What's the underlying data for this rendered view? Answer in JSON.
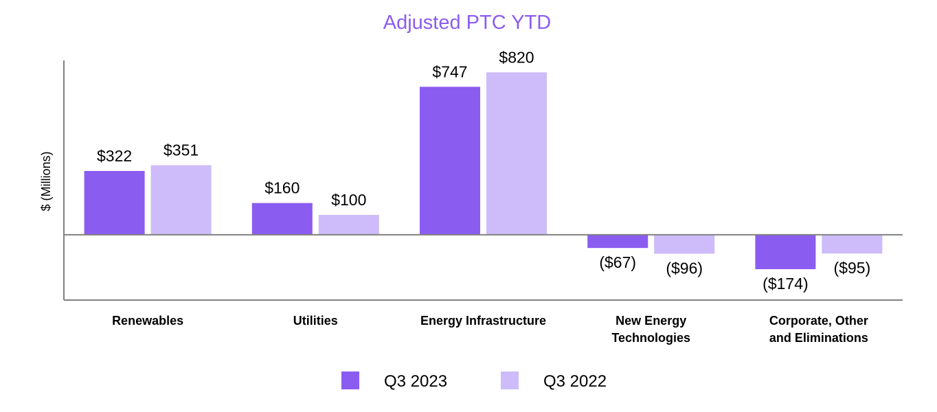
{
  "chart_data": {
    "type": "bar",
    "title": "Adjusted PTC YTD",
    "ylabel": "$ (Millions)",
    "xlabel": "",
    "categories": [
      [
        "Renewables"
      ],
      [
        "Utilities"
      ],
      [
        "Energy Infrastructure"
      ],
      [
        "New Energy",
        "Technologies"
      ],
      [
        "Corporate, Other",
        "and Eliminations"
      ]
    ],
    "series": [
      {
        "name": "Q3 2023",
        "color": "#8b5cf0",
        "values": [
          322,
          160,
          747,
          -67,
          -174
        ],
        "labels": [
          "$322",
          "$160",
          "$747",
          "($67)",
          "($174)"
        ]
      },
      {
        "name": "Q3 2022",
        "color": "#cdbcf9",
        "values": [
          351,
          100,
          820,
          -96,
          -95
        ],
        "labels": [
          "$351",
          "$100",
          "$820",
          "($96)",
          "($95)"
        ]
      }
    ],
    "ylim": [
      -330,
      880
    ],
    "grid": false,
    "legend": "bottom-center",
    "colors": {
      "title": "#8b5cf0",
      "axis": "#808080"
    }
  }
}
